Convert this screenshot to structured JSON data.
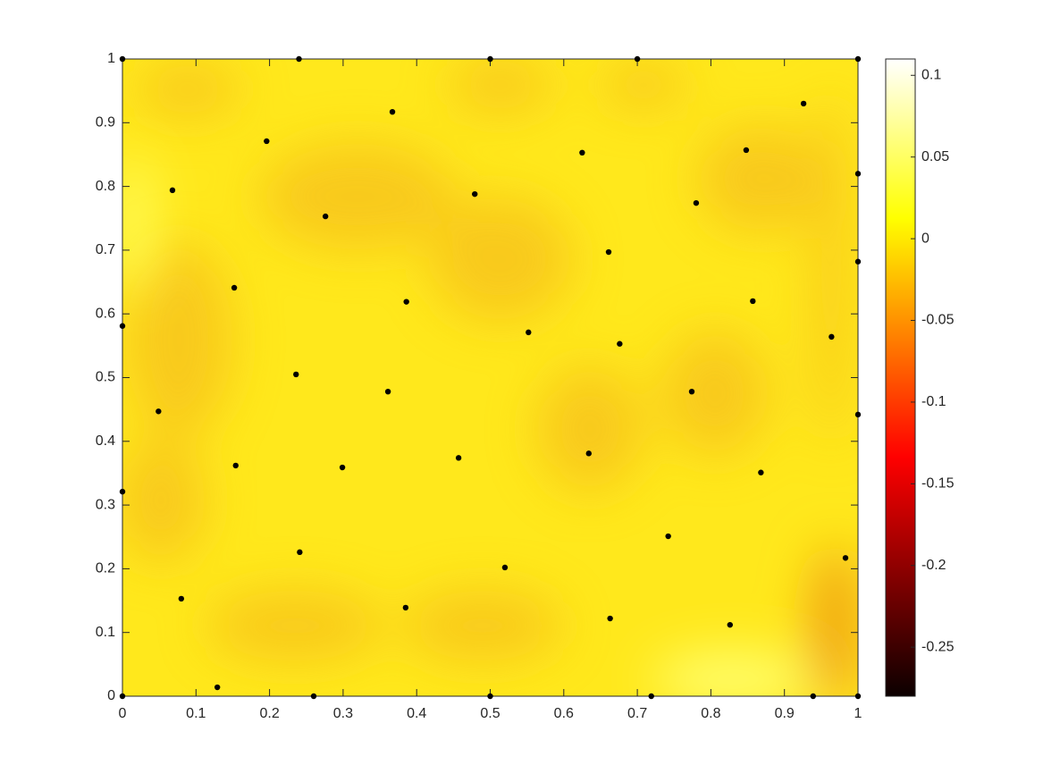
{
  "chart_data": {
    "type": "scatter",
    "x": [
      0,
      0.24,
      0.5,
      0.7,
      1,
      0.926,
      0.367,
      0.196,
      0.625,
      0.848,
      1,
      0.068,
      0.479,
      0.78,
      0.276,
      0.661,
      1,
      0.152,
      0.386,
      0.857,
      0,
      0.552,
      0.964,
      0.676,
      0.236,
      0.361,
      0.774,
      0.049,
      1,
      0.457,
      0.634,
      0.154,
      0.299,
      0.868,
      0,
      0.742,
      0.241,
      0.983,
      0.52,
      0.08,
      0.385,
      0.663,
      0.826,
      0.129,
      0.26,
      0.5,
      0.719,
      0.939,
      0,
      1
    ],
    "values": [
      1,
      1,
      1,
      1,
      1,
      0.93,
      0.917,
      0.871,
      0.853,
      0.857,
      0.82,
      0.794,
      0.788,
      0.774,
      0.753,
      0.697,
      0.682,
      0.641,
      0.619,
      0.62,
      0.581,
      0.571,
      0.564,
      0.553,
      0.505,
      0.478,
      0.478,
      0.447,
      0.442,
      0.374,
      0.381,
      0.362,
      0.359,
      0.351,
      0.321,
      0.251,
      0.226,
      0.217,
      0.202,
      0.153,
      0.139,
      0.122,
      0.112,
      0.014,
      0,
      0,
      0,
      0,
      0,
      0
    ],
    "color": "#000000",
    "xlim": [
      0,
      1
    ],
    "ylim": [
      0,
      1
    ],
    "xticks": [
      0,
      0.1,
      0.2,
      0.3,
      0.4,
      0.5,
      0.6,
      0.7,
      0.8,
      0.9,
      1
    ],
    "yticks": [
      0,
      0.1,
      0.2,
      0.3,
      0.4,
      0.5,
      0.6,
      0.7,
      0.8,
      0.9,
      1
    ],
    "colorbar": {
      "colormap": "hot",
      "clim": [
        -0.28,
        0.11
      ],
      "ticks": [
        -0.25,
        -0.2,
        -0.15,
        -0.1,
        -0.05,
        0,
        0.05,
        0.1
      ]
    }
  }
}
